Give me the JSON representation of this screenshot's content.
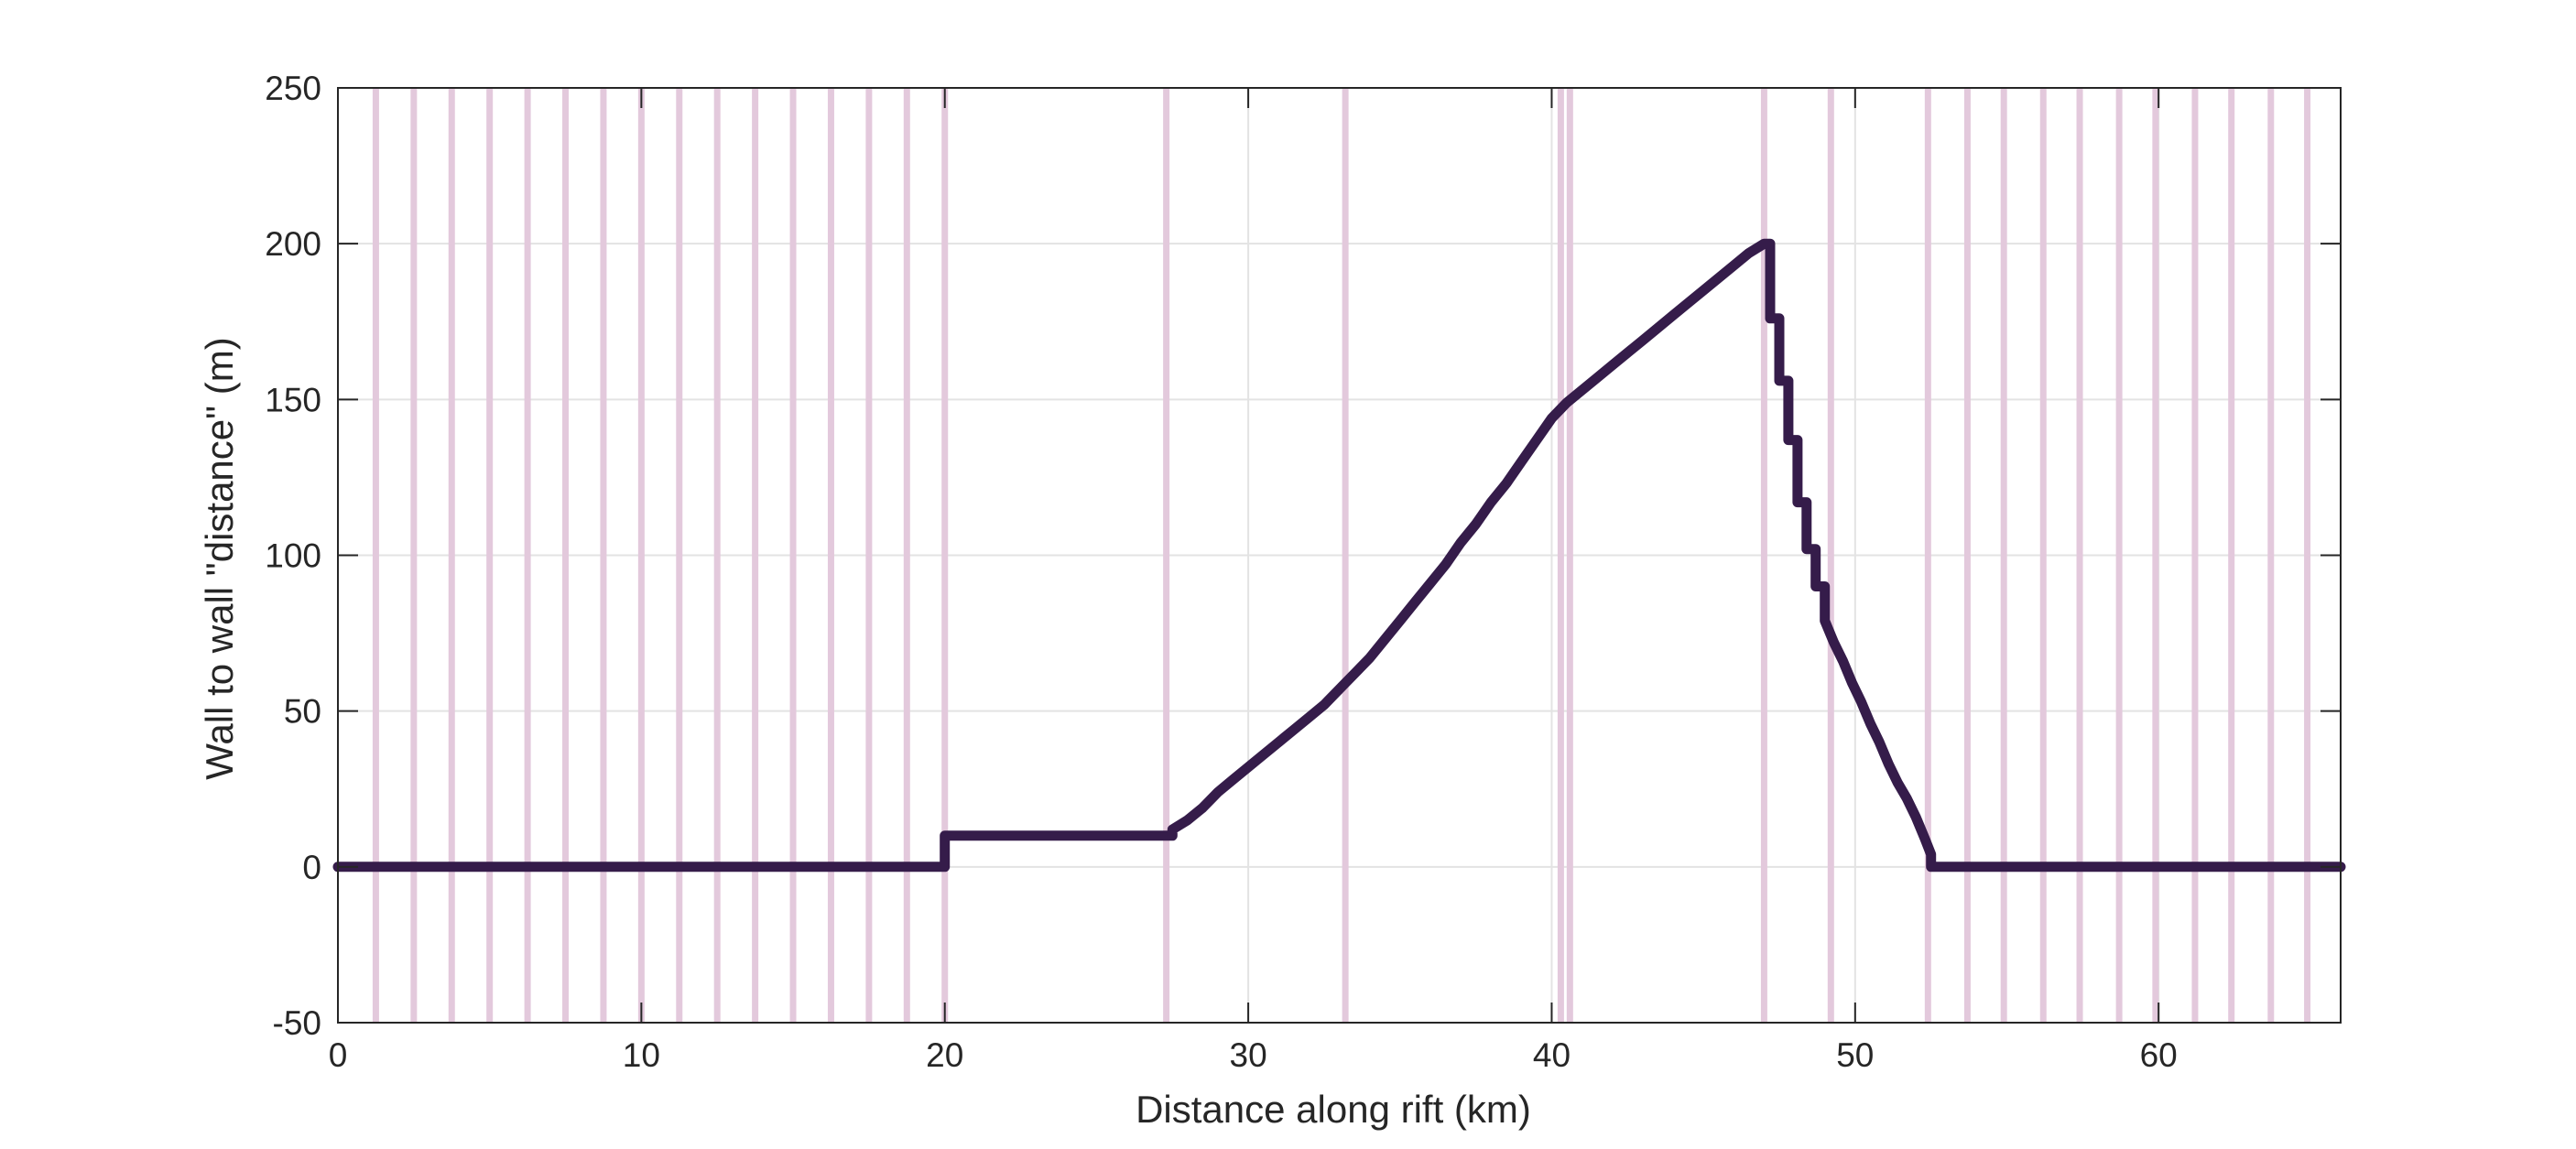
{
  "chart_data": {
    "type": "line",
    "title": "",
    "xlabel": "Distance along rift (km)",
    "ylabel": "Wall to wall \"distance\" (m)",
    "xlim": [
      0,
      66
    ],
    "ylim": [
      -50,
      250
    ],
    "xticks": [
      0,
      10,
      20,
      30,
      40,
      50,
      60
    ],
    "yticks": [
      -50,
      0,
      50,
      100,
      150,
      200,
      250
    ],
    "grid": true,
    "legend": "none",
    "colors": {
      "line": "#351c4a",
      "markers": "#e3c9dc",
      "grid": "#e3e3e3",
      "axes": "#262626"
    },
    "vertical_markers_x": [
      1.25,
      2.5,
      3.75,
      5.0,
      6.25,
      7.5,
      8.75,
      10.0,
      11.25,
      12.5,
      13.75,
      15.0,
      16.25,
      17.5,
      18.75,
      20.0,
      27.3,
      33.2,
      40.3,
      40.6,
      47.0,
      49.2,
      52.4,
      53.7,
      54.9,
      56.2,
      57.4,
      58.7,
      59.9,
      61.2,
      62.4,
      63.7,
      64.9
    ],
    "series": [
      {
        "x": [
          0,
          20.0,
          20.0,
          27.5,
          27.5,
          28.0,
          28.5,
          29.0,
          29.5,
          30.0,
          30.5,
          31.0,
          31.5,
          32.0,
          32.5,
          33.0,
          33.5,
          34.0,
          34.5,
          35.0,
          35.5,
          36.0,
          36.5,
          37.0,
          37.5,
          38.0,
          38.5,
          39.0,
          39.5,
          40.0,
          40.5,
          41.0,
          41.5,
          42.0,
          42.5,
          43.0,
          43.5,
          44.0,
          44.5,
          45.0,
          45.5,
          46.0,
          46.5,
          47.0,
          47.2,
          47.2,
          47.5,
          47.5,
          47.8,
          47.8,
          48.1,
          48.1,
          48.4,
          48.4,
          48.7,
          48.7,
          49.0,
          49.0,
          49.3,
          49.6,
          49.9,
          50.2,
          50.5,
          50.8,
          51.1,
          51.4,
          51.7,
          52.0,
          52.3,
          52.5,
          52.5,
          66
        ],
        "y": [
          0,
          0,
          10,
          10,
          12,
          15,
          19,
          24,
          28,
          32,
          36,
          40,
          44,
          48,
          52,
          57,
          62,
          67,
          73,
          79,
          85,
          91,
          97,
          104,
          110,
          117,
          123,
          130,
          137,
          144,
          149,
          153,
          157,
          161,
          165,
          169,
          173,
          177,
          181,
          185,
          189,
          193,
          197,
          200,
          200,
          176,
          176,
          156,
          156,
          137,
          137,
          117,
          117,
          102,
          102,
          90,
          90,
          79,
          72,
          66,
          59,
          53,
          46,
          40,
          33,
          27,
          22,
          16,
          9,
          4,
          0,
          0
        ]
      }
    ]
  }
}
